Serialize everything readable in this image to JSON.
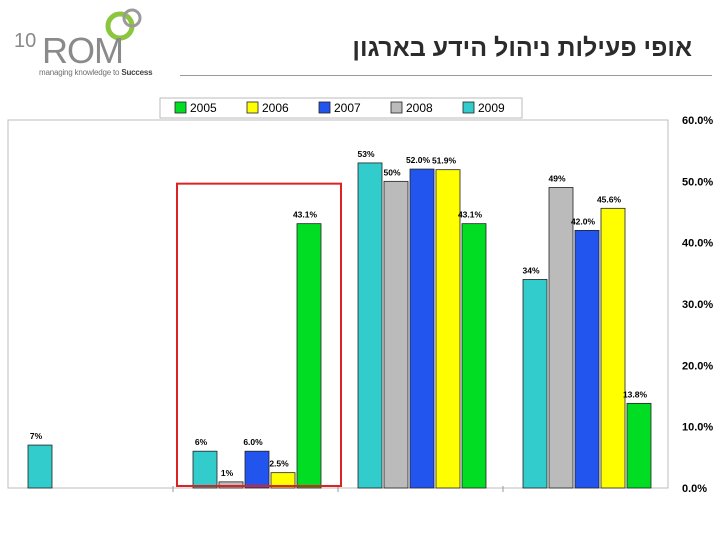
{
  "header": {
    "logo_number": "10",
    "logo_text": "ROM",
    "logo_tagline_start": "managing knowledge to ",
    "logo_tagline_end": "Success",
    "title": "אופי פעילות ניהול הידע בארגון"
  },
  "colors": {
    "2005": "#00dd22",
    "2006": "#ffff00",
    "2007": "#2255ee",
    "2008": "#bbbbbb",
    "2009": "#33cccc",
    "highlight_box": "#dd2222"
  },
  "chart_data": {
    "type": "bar",
    "ylim": [
      0,
      60
    ],
    "y_ticks": [
      "0.0%",
      "10.0%",
      "20.0%",
      "30.0%",
      "40.0%",
      "50.0%",
      "60.0%"
    ],
    "legend": [
      "2005",
      "2006",
      "2007",
      "2008",
      "2009"
    ],
    "legend_position": "top",
    "groups": [
      {
        "bars": [
          {
            "series": "2009",
            "value": 7,
            "label": "7%"
          }
        ]
      },
      {
        "bars": [
          {
            "series": "2009",
            "value": 6,
            "label": "6%"
          },
          {
            "series": "2008",
            "value": 1,
            "label": "1%"
          },
          {
            "series": "2007",
            "value": 6.0,
            "label": "6.0%"
          },
          {
            "series": "2006",
            "value": 2.5,
            "label": "2.5%"
          },
          {
            "series": "2005",
            "value": 43.1,
            "label": "43.1%"
          }
        ]
      },
      {
        "bars": [
          {
            "series": "2009",
            "value": 53,
            "label": "53%"
          },
          {
            "series": "2008",
            "value": 50,
            "label": "50%"
          },
          {
            "series": "2007",
            "value": 52.0,
            "label": "52.0%"
          },
          {
            "series": "2006",
            "value": 51.9,
            "label": "51.9%"
          },
          {
            "series": "2005",
            "value": 43.1,
            "label": "43.1%"
          }
        ]
      },
      {
        "bars": [
          {
            "series": "2009",
            "value": 34,
            "label": "34%"
          },
          {
            "series": "2008",
            "value": 49,
            "label": "49%"
          },
          {
            "series": "2007",
            "value": 42.0,
            "label": "42.0%"
          },
          {
            "series": "2006",
            "value": 45.6,
            "label": "45.6%"
          },
          {
            "series": "2005",
            "value": 13.8,
            "label": "13.8%"
          }
        ]
      }
    ],
    "highlighted_group": 1
  }
}
